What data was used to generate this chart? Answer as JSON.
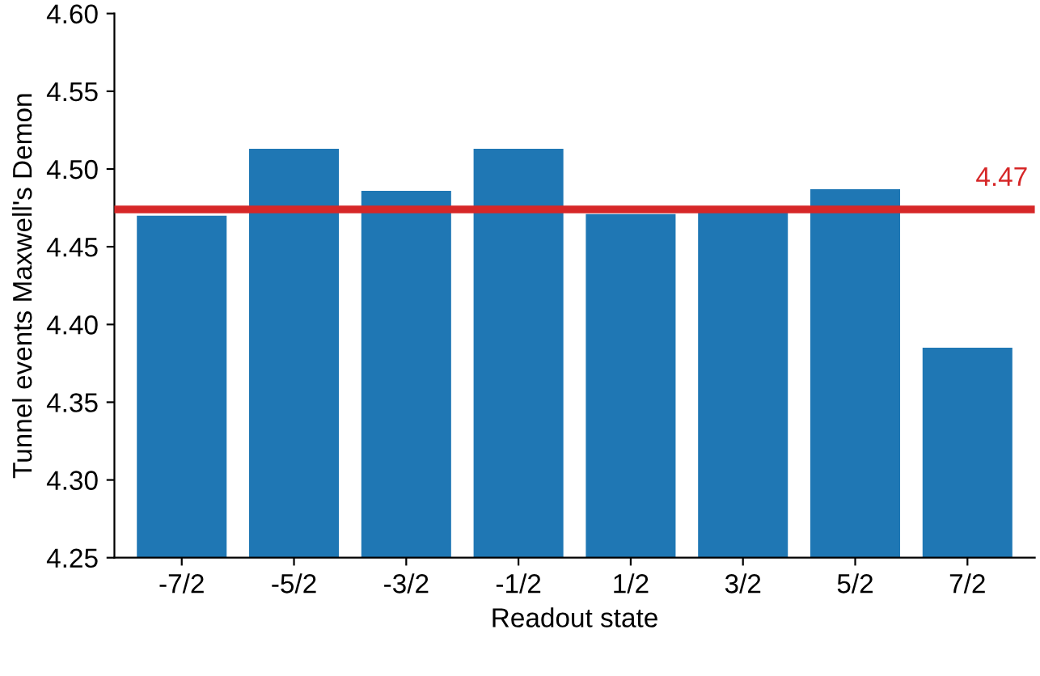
{
  "chart_data": {
    "type": "bar",
    "xlabel": "Readout state",
    "ylabel": "Tunnel events Maxwell's Demon",
    "categories": [
      "-7/2",
      "-5/2",
      "-3/2",
      "-1/2",
      "1/2",
      "3/2",
      "5/2",
      "7/2"
    ],
    "values": [
      4.47,
      4.513,
      4.486,
      4.513,
      4.471,
      4.474,
      4.487,
      4.385
    ],
    "color": "#1f77b4",
    "ylim": [
      4.25,
      4.6
    ],
    "yticks": [
      {
        "value": 4.25,
        "label": "4.25"
      },
      {
        "value": 4.3,
        "label": "4.30"
      },
      {
        "value": 4.35,
        "label": "4.35"
      },
      {
        "value": 4.4,
        "label": "4.40"
      },
      {
        "value": 4.45,
        "label": "4.45"
      },
      {
        "value": 4.5,
        "label": "4.50"
      },
      {
        "value": 4.55,
        "label": "4.55"
      },
      {
        "value": 4.6,
        "label": "4.60"
      }
    ],
    "ref_lines": [
      {
        "axis": "y",
        "value": 4.474,
        "label": "4.47",
        "color": "#d62728"
      }
    ],
    "grid": false,
    "legend": false
  }
}
